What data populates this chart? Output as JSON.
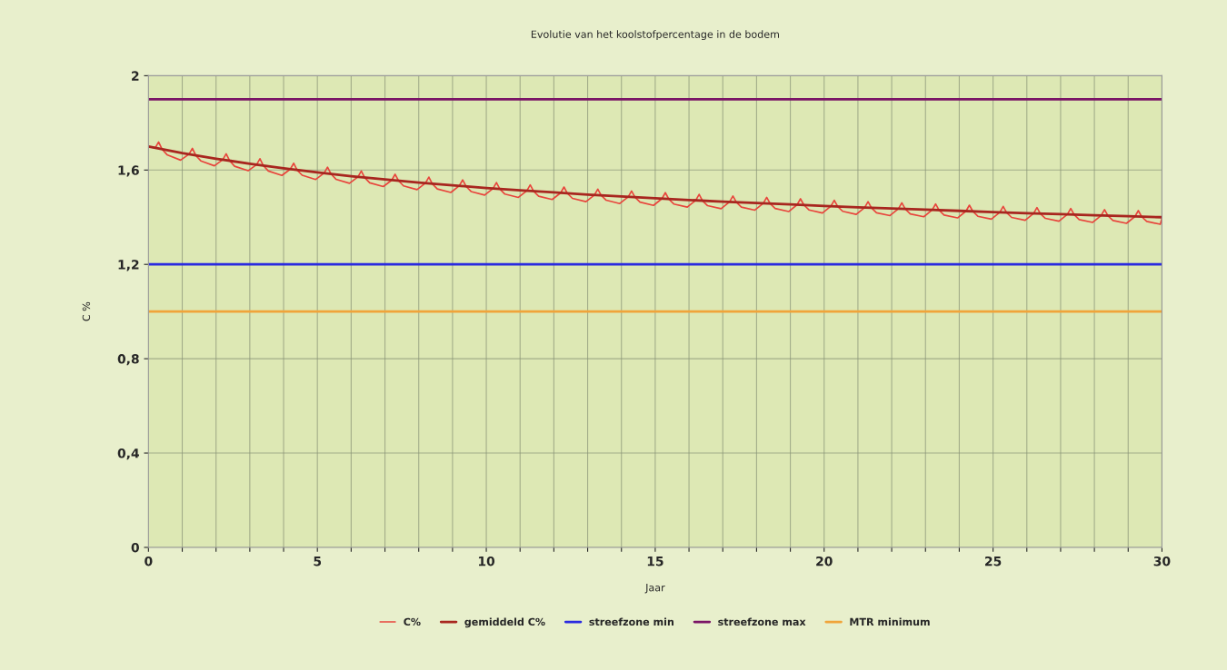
{
  "chart_data": {
    "type": "line",
    "title": "Evolutie van het koolstofpercentage in de bodem",
    "xlabel": "Jaar",
    "ylabel": "C %",
    "xlim": [
      0,
      30
    ],
    "ylim": [
      0,
      2
    ],
    "xticks": [
      0,
      {
        "value": 1,
        "label": null
      },
      {
        "value": 2,
        "label": null
      },
      {
        "value": 3,
        "label": null
      },
      {
        "value": 4,
        "label": null
      },
      5,
      {
        "value": 6,
        "label": null
      },
      {
        "value": 7,
        "label": null
      },
      {
        "value": 8,
        "label": null
      },
      {
        "value": 9,
        "label": null
      },
      10,
      {
        "value": 11,
        "label": null
      },
      {
        "value": 12,
        "label": null
      },
      {
        "value": 13,
        "label": null
      },
      {
        "value": 14,
        "label": null
      },
      15,
      {
        "value": 16,
        "label": null
      },
      {
        "value": 17,
        "label": null
      },
      {
        "value": 18,
        "label": null
      },
      {
        "value": 19,
        "label": null
      },
      20,
      {
        "value": 21,
        "label": null
      },
      {
        "value": 22,
        "label": null
      },
      {
        "value": 23,
        "label": null
      },
      {
        "value": 24,
        "label": null
      },
      25,
      {
        "value": 26,
        "label": null
      },
      {
        "value": 27,
        "label": null
      },
      {
        "value": 28,
        "label": null
      },
      {
        "value": 29,
        "label": null
      },
      30
    ],
    "yticks": [
      0,
      {
        "value": 0.4,
        "label": "0,4"
      },
      {
        "value": 0.8,
        "label": "0,8"
      },
      {
        "value": 1.2,
        "label": "1,2"
      },
      {
        "value": 1.6,
        "label": "1,6"
      },
      2
    ],
    "grid": true,
    "legend": "bottom",
    "series": [
      {
        "name": "C%",
        "color": "#e8453c",
        "x": [
          0,
          0.2,
          0.3,
          0.4,
          0.55,
          0.95,
          1.2,
          1.3,
          1.4,
          1.55,
          1.95,
          2.2,
          2.3,
          2.4,
          2.55,
          2.95,
          3.2,
          3.3,
          3.4,
          3.55,
          3.95,
          4.2,
          4.3,
          4.4,
          4.55,
          4.95,
          5.2,
          5.3,
          5.4,
          5.55,
          5.95,
          6.2,
          6.3,
          6.4,
          6.55,
          6.95,
          7.2,
          7.3,
          7.4,
          7.55,
          7.95,
          8.2,
          8.3,
          8.4,
          8.55,
          8.95,
          9.2,
          9.3,
          9.4,
          9.55,
          9.95,
          10.2,
          10.3,
          10.4,
          10.55,
          10.95,
          11.2,
          11.3,
          11.4,
          11.55,
          11.95,
          12.2,
          12.3,
          12.4,
          12.55,
          12.95,
          13.2,
          13.3,
          13.4,
          13.55,
          13.95,
          14.2,
          14.3,
          14.4,
          14.55,
          14.95,
          15.2,
          15.3,
          15.4,
          15.55,
          15.95,
          16.2,
          16.3,
          16.4,
          16.55,
          16.95,
          17.2,
          17.3,
          17.4,
          17.55,
          17.95,
          18.2,
          18.3,
          18.4,
          18.55,
          18.95,
          19.2,
          19.3,
          19.4,
          19.55,
          19.95,
          20.2,
          20.3,
          20.4,
          20.55,
          20.95,
          21.2,
          21.3,
          21.4,
          21.55,
          21.95,
          22.2,
          22.3,
          22.4,
          22.55,
          22.95,
          23.2,
          23.3,
          23.4,
          23.55,
          23.95,
          24.2,
          24.3,
          24.4,
          24.55,
          24.95,
          25.2,
          25.3,
          25.4,
          25.55,
          25.95,
          26.2,
          26.3,
          26.4,
          26.55,
          26.95,
          27.2,
          27.3,
          27.4,
          27.55,
          27.95,
          28.2,
          28.3,
          28.4,
          28.55,
          28.95,
          29.2,
          29.3,
          29.4,
          29.55,
          29.95,
          30
        ],
        "values": [
          1.7,
          1.694,
          1.719,
          1.689,
          1.665,
          1.642,
          1.667,
          1.692,
          1.662,
          1.639,
          1.618,
          1.644,
          1.669,
          1.64,
          1.616,
          1.597,
          1.623,
          1.648,
          1.619,
          1.596,
          1.577,
          1.604,
          1.629,
          1.6,
          1.578,
          1.56,
          1.587,
          1.612,
          1.584,
          1.561,
          1.544,
          1.571,
          1.596,
          1.568,
          1.546,
          1.53,
          1.557,
          1.582,
          1.555,
          1.533,
          1.517,
          1.545,
          1.57,
          1.542,
          1.52,
          1.505,
          1.533,
          1.558,
          1.531,
          1.509,
          1.494,
          1.522,
          1.547,
          1.52,
          1.498,
          1.484,
          1.512,
          1.537,
          1.51,
          1.489,
          1.475,
          1.503,
          1.528,
          1.501,
          1.48,
          1.466,
          1.494,
          1.519,
          1.493,
          1.472,
          1.458,
          1.486,
          1.511,
          1.485,
          1.464,
          1.45,
          1.479,
          1.504,
          1.477,
          1.456,
          1.443,
          1.472,
          1.497,
          1.47,
          1.449,
          1.436,
          1.465,
          1.49,
          1.464,
          1.443,
          1.43,
          1.459,
          1.484,
          1.458,
          1.437,
          1.424,
          1.453,
          1.478,
          1.452,
          1.431,
          1.418,
          1.447,
          1.472,
          1.446,
          1.425,
          1.412,
          1.441,
          1.466,
          1.44,
          1.419,
          1.407,
          1.436,
          1.461,
          1.435,
          1.414,
          1.402,
          1.431,
          1.456,
          1.43,
          1.409,
          1.397,
          1.426,
          1.451,
          1.425,
          1.404,
          1.392,
          1.421,
          1.446,
          1.42,
          1.399,
          1.387,
          1.416,
          1.441,
          1.415,
          1.395,
          1.383,
          1.412,
          1.437,
          1.411,
          1.39,
          1.378,
          1.407,
          1.432,
          1.406,
          1.386,
          1.374,
          1.403,
          1.428,
          1.402,
          1.382,
          1.37,
          1.395
        ]
      },
      {
        "name": "gemiddeld C%",
        "color": "#a8261f",
        "x": [
          0,
          1,
          2,
          3,
          4,
          5,
          6,
          7,
          8,
          9,
          10,
          11,
          12,
          13,
          14,
          15,
          16,
          17,
          18,
          19,
          20,
          21,
          22,
          23,
          24,
          25,
          26,
          27,
          28,
          29,
          30
        ],
        "values": [
          1.7,
          1.672,
          1.648,
          1.627,
          1.607,
          1.59,
          1.574,
          1.56,
          1.547,
          1.535,
          1.524,
          1.514,
          1.505,
          1.496,
          1.488,
          1.48,
          1.473,
          1.466,
          1.46,
          1.454,
          1.448,
          1.442,
          1.437,
          1.432,
          1.427,
          1.422,
          1.417,
          1.413,
          1.408,
          1.404,
          1.4
        ]
      },
      {
        "name": "streefzone min",
        "color": "#2a2ae0",
        "x": [
          0,
          30
        ],
        "values": [
          1.2,
          1.2
        ]
      },
      {
        "name": "streefzone max",
        "color": "#7a1466",
        "x": [
          0,
          30
        ],
        "values": [
          1.9,
          1.9
        ]
      },
      {
        "name": "MTR minimum",
        "color": "#f0a43a",
        "x": [
          0,
          30
        ],
        "values": [
          1.0,
          1.0
        ]
      }
    ]
  }
}
